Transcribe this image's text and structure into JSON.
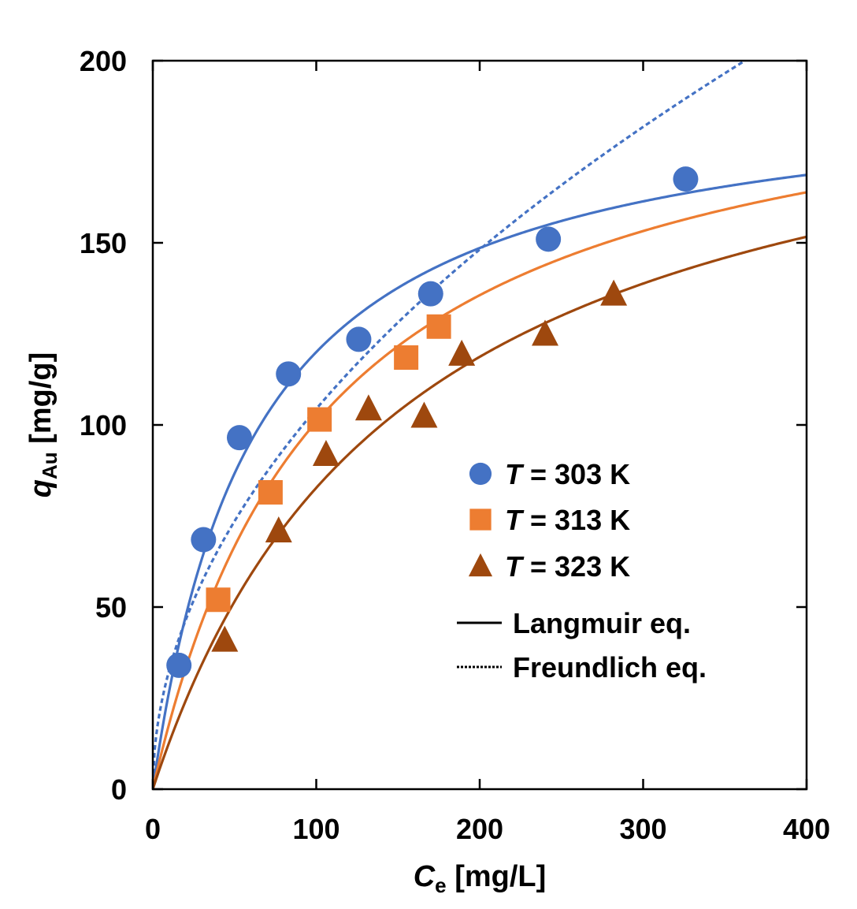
{
  "chart_data": {
    "type": "scatter",
    "xlabel": {
      "symbol": "C",
      "subscript": "e",
      "unit": " [mg/L]"
    },
    "ylabel": {
      "symbol": "q",
      "subscript": "Au",
      "unit": " [mg/g]"
    },
    "xlim": [
      0,
      400
    ],
    "ylim": [
      0,
      200
    ],
    "xticks": [
      0,
      100,
      200,
      300,
      400
    ],
    "yticks": [
      0,
      50,
      100,
      150,
      200
    ],
    "grid": false,
    "legend_position": "right-center",
    "series": [
      {
        "name_prefix": "T",
        "name_rest": " = 303 K",
        "marker": "circle",
        "color": "#4472C4",
        "points": [
          [
            16,
            34
          ],
          [
            31,
            68.5
          ],
          [
            53,
            96.5
          ],
          [
            83,
            114
          ],
          [
            126,
            123.5
          ],
          [
            170,
            136
          ],
          [
            242,
            151
          ],
          [
            326,
            167.5
          ]
        ],
        "langmuir": {
          "qmax": 195,
          "K": 0.016
        },
        "freundlich": {
          "Kf": 10.2,
          "n": 1.98
        }
      },
      {
        "name_prefix": "T",
        "name_rest": " = 313 K",
        "marker": "square",
        "color": "#ED7D31",
        "points": [
          [
            40,
            52
          ],
          [
            72,
            81.5
          ],
          [
            102,
            101.5
          ],
          [
            155,
            118.5
          ],
          [
            175,
            127
          ]
        ],
        "langmuir": {
          "qmax": 207,
          "K": 0.0095
        }
      },
      {
        "name_prefix": "T",
        "name_rest": " = 323 K",
        "marker": "triangle",
        "color": "#9E480E",
        "points": [
          [
            44,
            41
          ],
          [
            77,
            71
          ],
          [
            106,
            92
          ],
          [
            132,
            104.5
          ],
          [
            166,
            102.5
          ],
          [
            189,
            119.5
          ],
          [
            240,
            125
          ],
          [
            282,
            136
          ]
        ],
        "langmuir": {
          "qmax": 210,
          "K": 0.0065
        }
      }
    ],
    "fit_legend": [
      {
        "label": "Langmuir eq.",
        "style": "solid"
      },
      {
        "label": "Freundlich eq.",
        "style": "dotted"
      }
    ]
  }
}
